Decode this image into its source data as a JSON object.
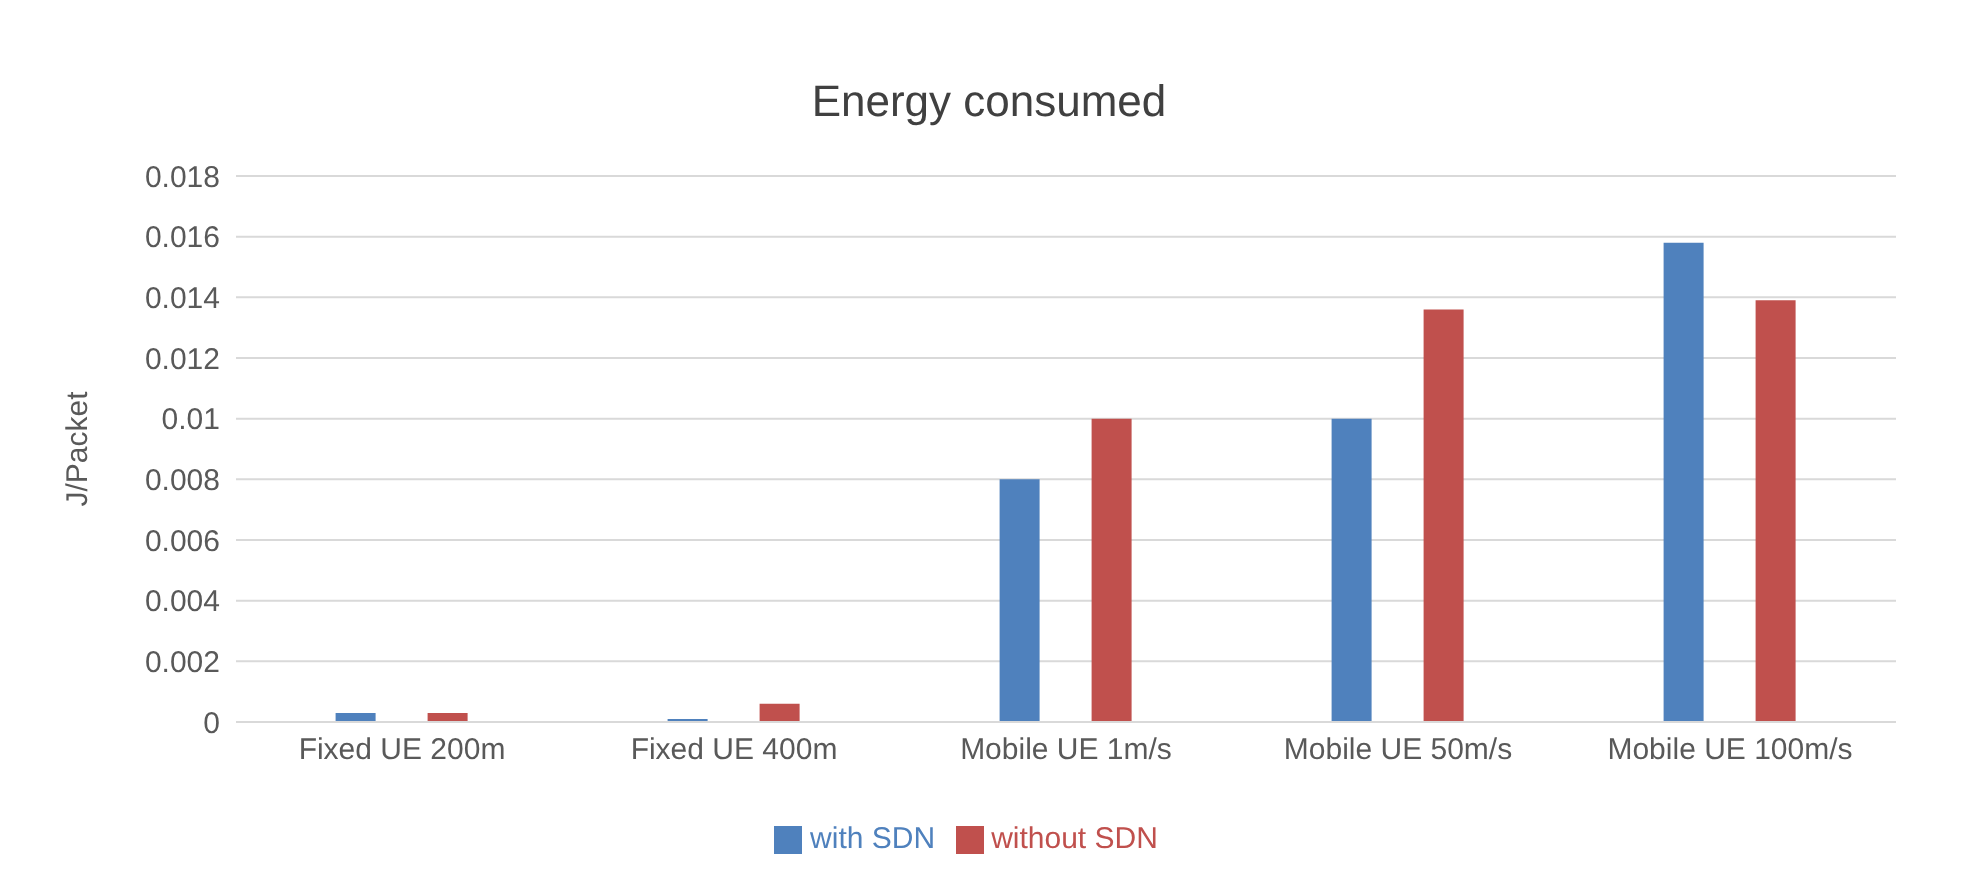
{
  "chart_data": {
    "type": "bar",
    "title": "Energy consumed",
    "ylabel": "J/Packet",
    "categories": [
      "Fixed UE 200m",
      "Fixed UE 400m",
      "Mobile UE 1m/s",
      "Mobile UE 50m/s",
      "Mobile UE 100m/s"
    ],
    "series": [
      {
        "name": "with SDN",
        "color": "#4f81bd",
        "values": [
          0.0003,
          0.0001,
          0.008,
          0.01,
          0.0158
        ]
      },
      {
        "name": "without SDN",
        "color": "#c0504d",
        "values": [
          0.0003,
          0.0006,
          0.01,
          0.0136,
          0.0139
        ]
      }
    ],
    "ylim": [
      0,
      0.018
    ],
    "yticks": [
      0,
      0.002,
      0.004,
      0.006,
      0.008,
      0.01,
      0.012,
      0.014,
      0.016,
      0.018
    ],
    "grid": "y",
    "legend": "bottom"
  }
}
